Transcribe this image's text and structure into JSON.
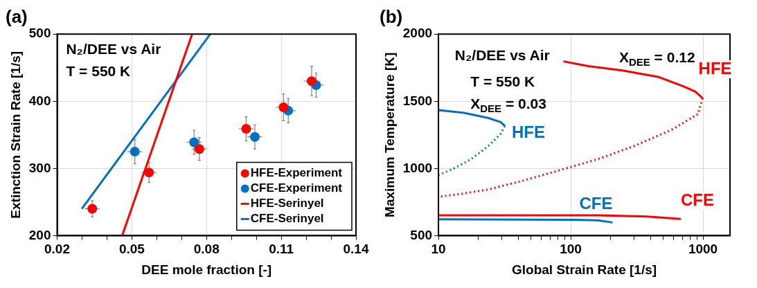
{
  "chart_data": [
    {
      "type": "scatter",
      "title": "(a)",
      "xlabel": "DEE mole fraction [-]",
      "ylabel": "Extinction Strain Rate [1/s]",
      "annotations": [
        "N₂/DEE vs Air",
        "T = 550 K"
      ],
      "xlim": [
        0.02,
        0.14
      ],
      "xticks": [
        0.02,
        {
          "value": 0.03,
          "label": null
        },
        {
          "value": 0.04,
          "label": null
        },
        0.05,
        {
          "value": 0.06,
          "label": null
        },
        {
          "value": 0.07,
          "label": null
        },
        0.08,
        {
          "value": 0.09,
          "label": null
        },
        {
          "value": 0.1,
          "label": null
        },
        0.11,
        {
          "value": 0.12,
          "label": null
        },
        {
          "value": 0.13,
          "label": null
        },
        0.14
      ],
      "ylim": [
        200,
        500
      ],
      "yticks": [
        200,
        300,
        400,
        500
      ],
      "grid": true,
      "legend": "bottom right",
      "marker": "circle",
      "series": [
        {
          "name": "HFE-Experiment",
          "color": "#ff0000",
          "x": [
            0.0341,
            0.0569,
            0.0771,
            0.0959,
            0.1109,
            0.1222
          ],
          "values": [
            240,
            294,
            329,
            359,
            391,
            430
          ],
          "errors": [
            12,
            15,
            17,
            18,
            20,
            22
          ],
          "xerrors": [
            0.003,
            0.003,
            0.003,
            0.003,
            0.003,
            0.003
          ]
        },
        {
          "name": "CFE-Experiment",
          "color": "#0070c0",
          "x": [
            0.0512,
            0.075,
            0.0994,
            0.1128,
            0.124
          ],
          "values": [
            325,
            339,
            347,
            386,
            424
          ],
          "errors": [
            18,
            18,
            18,
            18,
            18
          ],
          "xerrors": [
            0.003,
            0.003,
            0.003,
            0.003,
            0.003
          ]
        },
        {
          "name": "HFE-Serinyel",
          "type": "line",
          "marker": "none",
          "color": "#ff0000",
          "x": [
            0.0461,
            0.0742
          ],
          "values": [
            200,
            500
          ]
        },
        {
          "name": "CFE-Serinyel",
          "type": "line",
          "marker": "none",
          "color": "#0070c0",
          "x": [
            0.0299,
            0.0815
          ],
          "values": [
            240,
            500
          ]
        }
      ]
    },
    {
      "type": "line",
      "title": "(b)",
      "xlabel": "Global Strain Rate [1/s]",
      "ylabel": "Maximum Temperature [K]",
      "log": "x",
      "marker": "none",
      "grid": true,
      "legend": false,
      "annotations": [
        "N₂/DEE vs Air",
        "T = 550 K",
        "X$_{DEE}$ = 0.12",
        "X$_{DEE}$ = 0.03"
      ],
      "xlim": [
        10,
        1600
      ],
      "xticks": [
        10,
        {
          "value": 20,
          "label": null
        },
        {
          "value": 30,
          "label": null
        },
        {
          "value": 40,
          "label": null
        },
        {
          "value": 50,
          "label": null
        },
        {
          "value": 60,
          "label": null
        },
        {
          "value": 70,
          "label": null
        },
        {
          "value": 80,
          "label": null
        },
        {
          "value": 90,
          "label": null
        },
        100,
        {
          "value": 200,
          "label": null
        },
        {
          "value": 300,
          "label": null
        },
        {
          "value": 400,
          "label": null
        },
        {
          "value": 500,
          "label": null
        },
        {
          "value": 600,
          "label": null
        },
        {
          "value": 700,
          "label": null
        },
        {
          "value": 800,
          "label": null
        },
        {
          "value": 900,
          "label": null
        },
        1000
      ],
      "ylim": [
        500,
        2000
      ],
      "yticks": [
        500,
        1000,
        1500,
        2000
      ],
      "series": [
        {
          "name": "HFE",
          "color": "#ff0000",
          "x": [
            88,
            136,
            245,
            464,
            710,
            877,
            995
          ],
          "values": [
            1797,
            1762,
            1729,
            1680,
            1611,
            1571,
            1522
          ]
        },
        {
          "color": "#ff0000",
          "line_style": "dotted",
          "x": [
            995,
            914,
            574,
            303,
            161,
            85,
            45,
            23.9,
            15.6,
            10
          ],
          "values": [
            1522,
            1404,
            1286,
            1168,
            1070,
            991,
            913,
            844,
            814,
            789
          ]
        },
        {
          "name": "HFE",
          "color": "#0070c0",
          "x": [
            10,
            15.6,
            23.9,
            29.5,
            31.8
          ],
          "values": [
            1434,
            1414,
            1375,
            1345,
            1316
          ]
        },
        {
          "color": "#0070c0",
          "line_style": "dotted",
          "x": [
            31.8,
            29.5,
            23.9,
            17.7,
            12.6,
            10
          ],
          "values": [
            1316,
            1257,
            1168,
            1070,
            991,
            952
          ]
        },
        {
          "name": "CFE",
          "color": "#ff0000",
          "x": [
            10,
            161,
            376,
            679
          ],
          "values": [
            651,
            651,
            643,
            624
          ]
        },
        {
          "name": "CFE",
          "color": "#0070c0",
          "x": [
            10,
            105,
            161,
            207
          ],
          "values": [
            622,
            618,
            614,
            598
          ]
        }
      ]
    }
  ]
}
